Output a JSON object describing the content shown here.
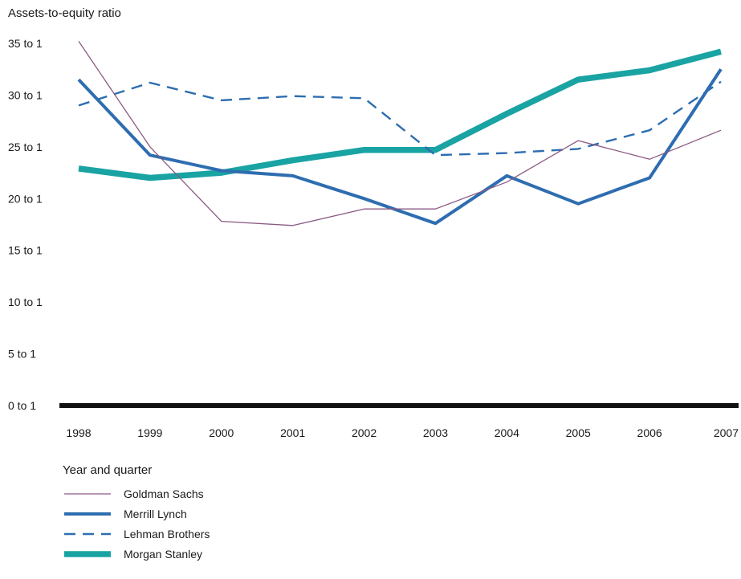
{
  "chart_data": {
    "type": "line",
    "ylabel": "Assets-to-equity ratio",
    "xlabel": "Year and quarter",
    "categories": [
      "1998",
      "1999",
      "2000",
      "2001",
      "2002",
      "2003",
      "2004",
      "2005",
      "2006",
      "2007"
    ],
    "ylim": [
      0,
      35
    ],
    "yticks": [
      0,
      5,
      10,
      15,
      20,
      25,
      30,
      35
    ],
    "ytick_labels": [
      "0 to 1",
      "5 to 1",
      "10 to 1",
      "15 to 1",
      "20 to 1",
      "25 to 1",
      "30 to 1",
      "35 to 1"
    ],
    "grid": false,
    "legend_position": "bottom-left",
    "series": [
      {
        "name": "Goldman Sachs",
        "values": [
          35.2,
          25.0,
          17.8,
          17.4,
          19.0,
          19.0,
          21.6,
          25.6,
          23.8,
          26.6
        ],
        "color": "#8a5a83",
        "style": "thin"
      },
      {
        "name": "Merrill Lynch",
        "values": [
          31.5,
          24.2,
          22.7,
          22.2,
          20.0,
          17.6,
          22.2,
          19.5,
          22.0,
          32.5
        ],
        "color": "#2e6db0",
        "style": "solid"
      },
      {
        "name": "Lehman Brothers",
        "values": [
          29.0,
          31.2,
          29.5,
          29.9,
          29.7,
          24.2,
          24.4,
          24.8,
          26.6,
          31.3
        ],
        "color": "#2e6db0",
        "style": "dashed"
      },
      {
        "name": "Morgan Stanley",
        "values": [
          22.9,
          22.0,
          22.5,
          23.7,
          24.7,
          24.7,
          28.2,
          31.5,
          32.4,
          34.2
        ],
        "color": "#1aa3a3",
        "style": "thick"
      }
    ]
  }
}
